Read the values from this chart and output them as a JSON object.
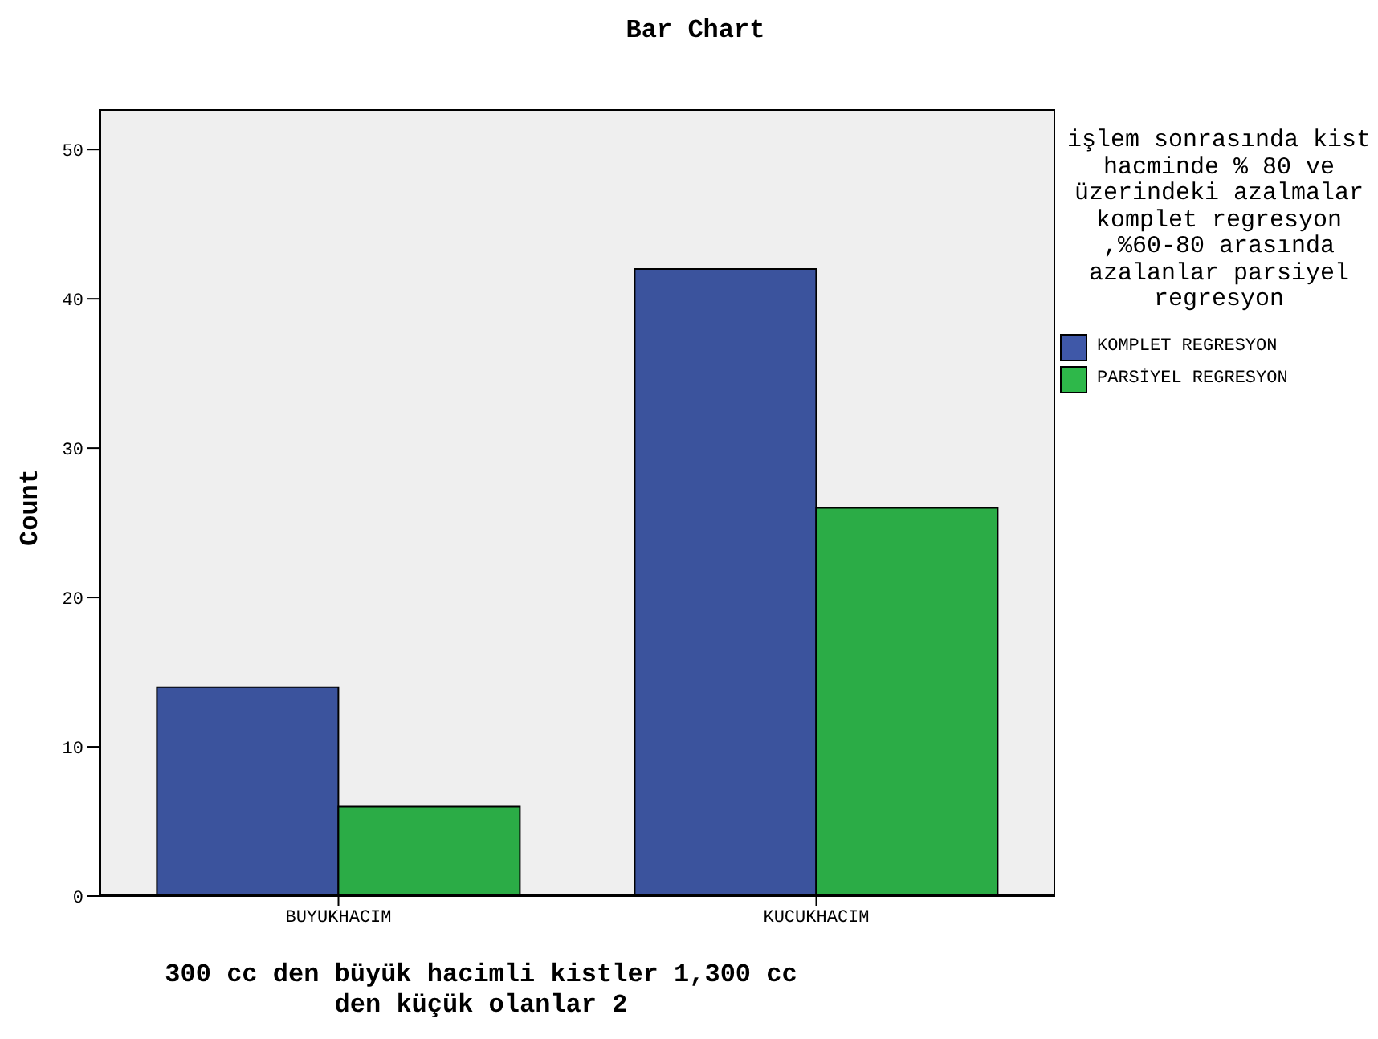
{
  "chart_data": {
    "type": "bar",
    "title": "Bar Chart",
    "xlabel": "300 cc den büyük hacimli kistler 1,300 cc den küçük olanlar 2",
    "ylabel": "Count",
    "legend_title": "işlem sonrasında kist hacminde % 80 ve üzerindeki azalmalar komplet regresyon ,%60-80 arasında azalanlar parsiyel regresyon",
    "categories": [
      "BUYUKHACIM",
      "KUCUKHACIM"
    ],
    "series": [
      {
        "name": "KOMPLET REGRESYON",
        "color": "#3f58a8",
        "values": [
          14,
          42
        ]
      },
      {
        "name": "PARSİYEL REGRESYON",
        "color": "#2eb84a",
        "values": [
          6,
          26
        ]
      }
    ],
    "ylim": [
      0,
      52.7
    ],
    "yticks": [
      0,
      10,
      20,
      30,
      40,
      50
    ],
    "grid": false,
    "legend": "right"
  }
}
